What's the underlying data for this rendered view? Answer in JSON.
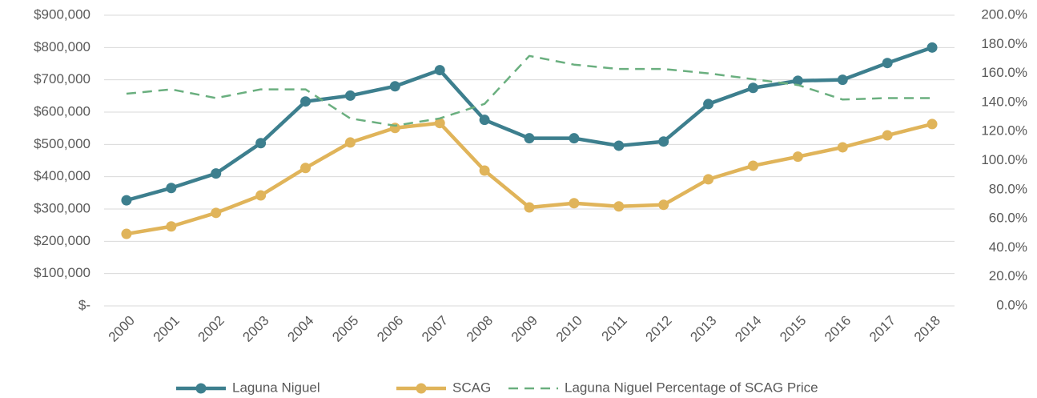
{
  "chart_data": {
    "type": "line",
    "categories": [
      "2000",
      "2001",
      "2002",
      "2003",
      "2004",
      "2005",
      "2006",
      "2007",
      "2008",
      "2009",
      "2010",
      "2011",
      "2012",
      "2013",
      "2014",
      "2015",
      "2016",
      "2017",
      "2018"
    ],
    "series": [
      {
        "name": "Laguna Niguel",
        "color": "#3d7f8e",
        "style": "solid-marker",
        "values": [
          327000,
          365000,
          410000,
          504000,
          633000,
          651000,
          680000,
          730000,
          576000,
          519000,
          519000,
          496000,
          509000,
          625000,
          675000,
          697000,
          700000,
          752000,
          800000
        ]
      },
      {
        "name": "SCAG",
        "color": "#e0b45a",
        "style": "solid-marker",
        "values": [
          223000,
          246000,
          288000,
          342000,
          427000,
          506000,
          551000,
          566000,
          419000,
          305000,
          318000,
          308000,
          313000,
          392000,
          434000,
          462000,
          491000,
          528000,
          563000
        ]
      },
      {
        "name": "Laguna Niguel Percentage of SCAG Price",
        "color": "#6aaf7f",
        "style": "dashed",
        "axis": "y2",
        "values": [
          146,
          149,
          143,
          149,
          149,
          129,
          124,
          129,
          139,
          172,
          166,
          163,
          163,
          160,
          156,
          152,
          142,
          143,
          143
        ]
      }
    ],
    "ylim": [
      0,
      900000
    ],
    "yticks": [
      {
        "value": 0,
        "label": "$-"
      },
      {
        "value": 100000,
        "label": "$100,000"
      },
      {
        "value": 200000,
        "label": "$200,000"
      },
      {
        "value": 300000,
        "label": "$300,000"
      },
      {
        "value": 400000,
        "label": "$400,000"
      },
      {
        "value": 500000,
        "label": "$500,000"
      },
      {
        "value": 600000,
        "label": "$600,000"
      },
      {
        "value": 700000,
        "label": "$700,000"
      },
      {
        "value": 800000,
        "label": "$800,000"
      },
      {
        "value": 900000,
        "label": "$900,000"
      }
    ],
    "y2lim": [
      0,
      200
    ],
    "y2ticks": [
      {
        "value": 0,
        "label": "0.0%"
      },
      {
        "value": 20,
        "label": "20.0%"
      },
      {
        "value": 40,
        "label": "40.0%"
      },
      {
        "value": 60,
        "label": "60.0%"
      },
      {
        "value": 80,
        "label": "80.0%"
      },
      {
        "value": 100,
        "label": "100.0%"
      },
      {
        "value": 120,
        "label": "120.0%"
      },
      {
        "value": 140,
        "label": "140.0%"
      },
      {
        "value": 160,
        "label": "160.0%"
      },
      {
        "value": 180,
        "label": "180.0%"
      },
      {
        "value": 200,
        "label": "200.0%"
      }
    ],
    "grid": true,
    "legend": "bottom"
  }
}
